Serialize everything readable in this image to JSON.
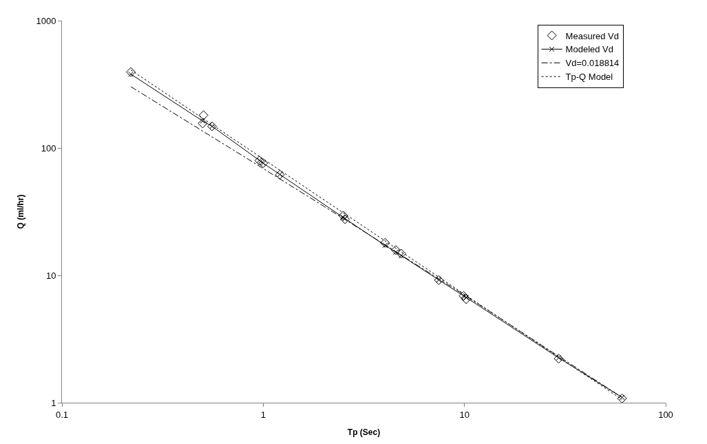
{
  "chart_data": {
    "type": "scatter",
    "xlabel": "Tp (Sec)",
    "ylabel": "Q (ml/hr)",
    "log": "xy",
    "xlim": [
      0.1,
      100
    ],
    "ylim": [
      1,
      1000
    ],
    "xticks": [
      0.1,
      1,
      10,
      100
    ],
    "yticks": [
      1,
      10,
      100,
      1000
    ],
    "legend": "top right",
    "series": [
      {
        "name": "Measured Vd",
        "marker": "diamond",
        "color": "#000000",
        "x": [
          0.22,
          0.505,
          0.5,
          0.557,
          0.957,
          1.0,
          1.21,
          2.5,
          2.55,
          4.03,
          4.56,
          4.85,
          7.46,
          9.9,
          10.2,
          29.4,
          60.7
        ],
        "values": [
          395,
          181,
          156,
          148,
          79.6,
          76,
          61.8,
          29.4,
          27.6,
          18.0,
          15.8,
          14.8,
          9.17,
          6.9,
          6.5,
          2.22,
          1.08
        ]
      },
      {
        "name": "Modeled Vd",
        "type": "line",
        "marker": "cross",
        "line_style": "solid",
        "color": "#000000",
        "x": [
          0.22,
          0.5,
          0.557,
          0.957,
          1.0,
          1.21,
          2.5,
          2.55,
          4.03,
          4.56,
          4.85,
          7.46,
          9.9,
          10.2,
          29.4,
          60.7
        ],
        "values": [
          380,
          163,
          148,
          80,
          76,
          62,
          28.5,
          27.9,
          17.2,
          15.2,
          14.3,
          9.2,
          6.9,
          6.7,
          2.25,
          1.1
        ]
      },
      {
        "name": "Vd=0.018814",
        "type": "line",
        "marker": "none",
        "line_style": "dashdot",
        "color": "#000000",
        "x": [
          0.22,
          1,
          2.5,
          10,
          60.7
        ],
        "values": [
          303,
          69,
          28,
          7.0,
          1.1
        ]
      },
      {
        "name": "Tp-Q Model",
        "type": "line",
        "marker": "none",
        "line_style": "dotted",
        "color": "#000000",
        "x": [
          0.22,
          1,
          10,
          60.7
        ],
        "values": [
          410,
          82,
          7.1,
          1.06
        ]
      }
    ]
  }
}
